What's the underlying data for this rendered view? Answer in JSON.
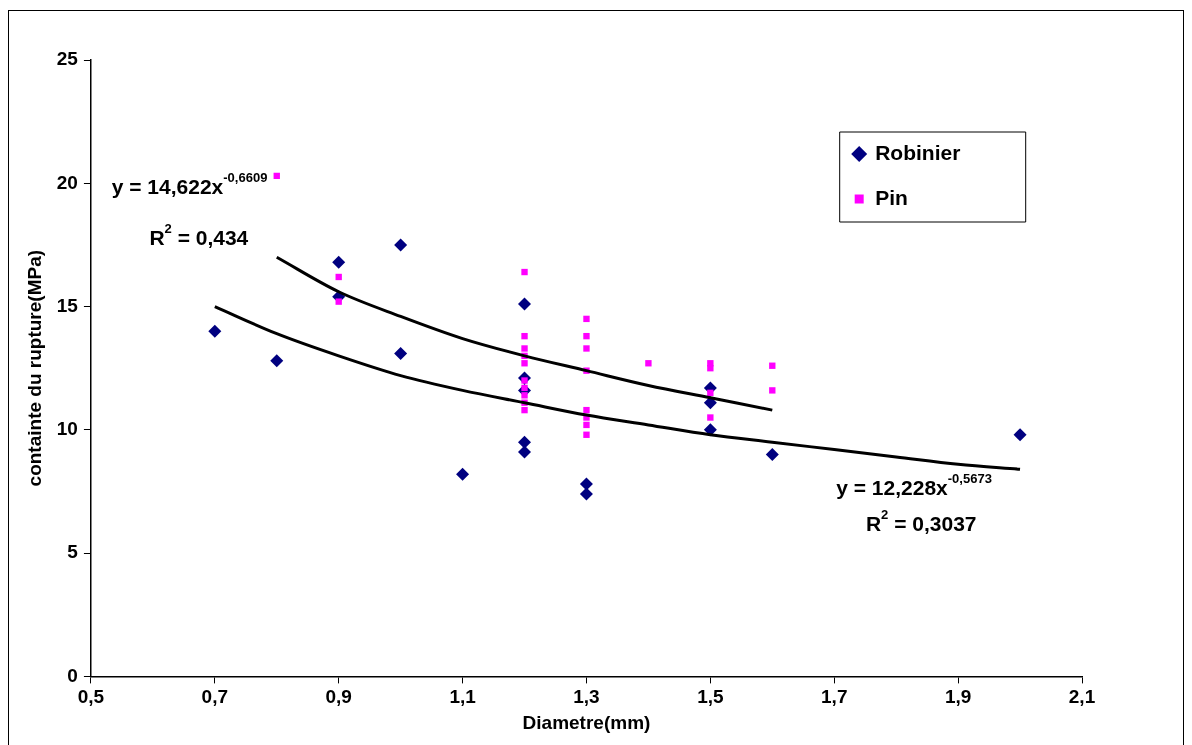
{
  "chart_data": {
    "type": "scatter",
    "xlabel": "Diametre(mm)",
    "ylabel": "containte du rupture(MPa)",
    "xlim": [
      0.5,
      2.1
    ],
    "xticks": [
      {
        "value": 0.5,
        "label": "0,5"
      },
      {
        "value": 0.7,
        "label": "0,7"
      },
      {
        "value": 0.9,
        "label": "0,9"
      },
      {
        "value": 1.1,
        "label": "1,1"
      },
      {
        "value": 1.3,
        "label": "1,3"
      },
      {
        "value": 1.5,
        "label": "1,5"
      },
      {
        "value": 1.7,
        "label": "1,7"
      },
      {
        "value": 1.9,
        "label": "1,9"
      },
      {
        "value": 2.1,
        "label": "2,1"
      }
    ],
    "ylim": [
      0,
      25
    ],
    "yticks": [
      0,
      5,
      10,
      15,
      20,
      25
    ],
    "grid": false,
    "legend": "top right",
    "series": [
      {
        "name": "Robinier",
        "color": "#000080",
        "marker": "diamond",
        "x": [
          0.7,
          0.8,
          0.9,
          0.9,
          1.0,
          1.0,
          1.1,
          1.2,
          1.2,
          1.2,
          1.2,
          1.2,
          1.3,
          1.3,
          1.5,
          1.5,
          1.5,
          1.6,
          2.0
        ],
        "values": [
          14.0,
          12.8,
          16.8,
          15.4,
          17.5,
          13.1,
          8.2,
          15.1,
          12.1,
          11.6,
          9.5,
          9.1,
          7.8,
          7.4,
          11.7,
          11.1,
          10.0,
          9.0,
          9.8
        ]
      },
      {
        "name": "Pin",
        "color": "#ff00ff",
        "marker": "square",
        "x": [
          0.8,
          0.9,
          0.9,
          1.2,
          1.2,
          1.2,
          1.2,
          1.2,
          1.2,
          1.2,
          1.2,
          1.2,
          1.2,
          1.3,
          1.3,
          1.3,
          1.3,
          1.3,
          1.3,
          1.3,
          1.3,
          1.4,
          1.5,
          1.5,
          1.5,
          1.5,
          1.6,
          1.6
        ],
        "values": [
          20.3,
          16.2,
          15.2,
          16.4,
          13.8,
          13.3,
          13.0,
          12.7,
          12.0,
          11.7,
          11.4,
          11.1,
          10.8,
          14.5,
          13.8,
          13.3,
          12.4,
          10.8,
          10.5,
          10.2,
          9.8,
          12.7,
          12.7,
          12.5,
          11.5,
          10.5,
          12.6,
          11.6
        ]
      },
      {
        "type": "line",
        "color": "#000000",
        "marker": "none",
        "x": [
          0.8,
          0.9,
          1.0,
          1.1,
          1.2,
          1.3,
          1.4,
          1.5,
          1.6
        ],
        "values": [
          17.0,
          15.6,
          14.6,
          13.7,
          13.0,
          12.4,
          11.8,
          11.3,
          10.8
        ]
      },
      {
        "type": "line",
        "color": "#000000",
        "marker": "none",
        "x": [
          0.7,
          0.8,
          0.9,
          1.0,
          1.1,
          1.2,
          1.3,
          1.4,
          1.5,
          1.6,
          1.7,
          1.8,
          1.9,
          2.0
        ],
        "values": [
          15.0,
          13.9,
          13.0,
          12.2,
          11.6,
          11.1,
          10.6,
          10.2,
          9.8,
          9.5,
          9.2,
          8.9,
          8.6,
          8.4
        ]
      }
    ],
    "annotations": [
      "y = 14,622x$^{-0,6609}$",
      "R$^{2}$ = 0,434",
      "y = 12,228x$^{-0,5673}$",
      "R$^{2}$ = 0,3037"
    ]
  }
}
